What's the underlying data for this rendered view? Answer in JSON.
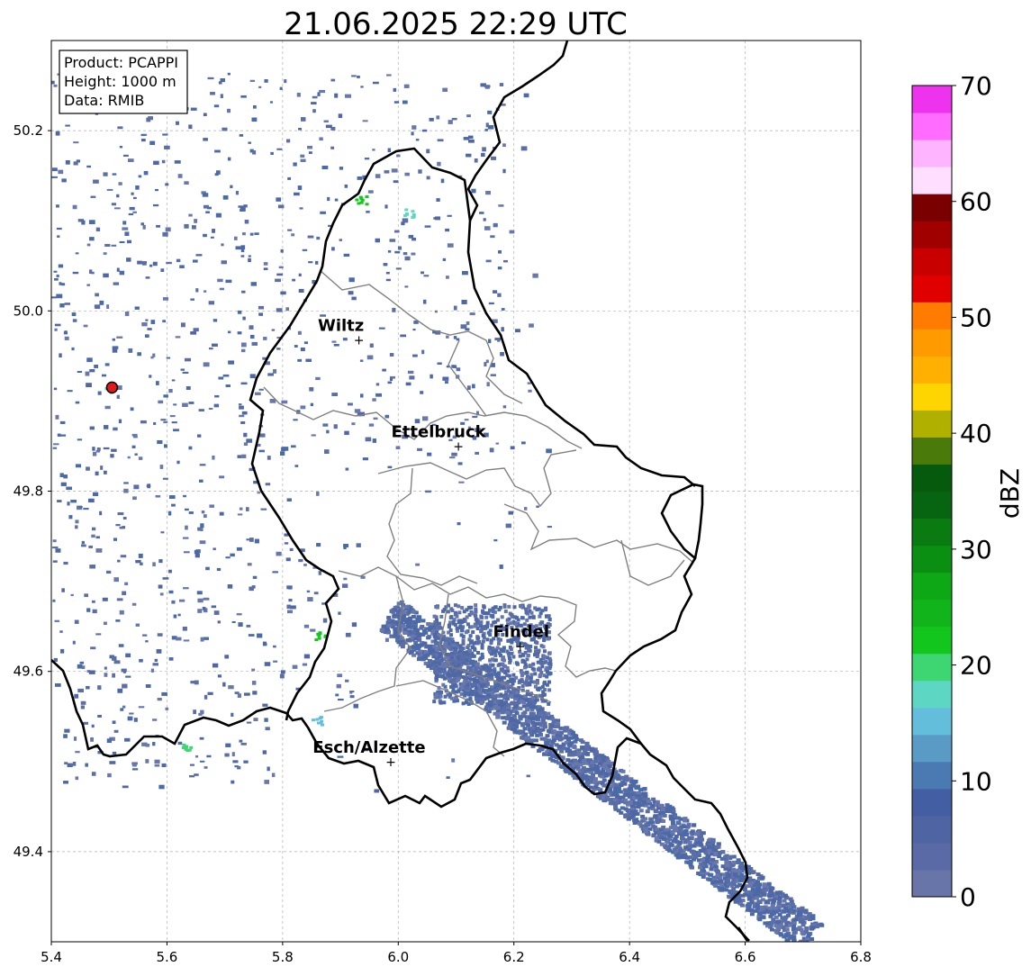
{
  "title": "21.06.2025 22:29 UTC",
  "info_box": {
    "product": "Product: PCAPPI",
    "height": "Height: 1000 m",
    "data": "Data: RMIB"
  },
  "map": {
    "lon_range": [
      5.4,
      6.8
    ],
    "lat_range": [
      49.3,
      50.3
    ],
    "x_ticks": [
      "5.4",
      "5.6",
      "5.8",
      "6.0",
      "6.2",
      "6.4",
      "6.6",
      "6.8"
    ],
    "y_ticks": [
      "49.4",
      "49.6",
      "49.8",
      "50.0",
      "50.2"
    ],
    "grid": true,
    "radar_site": {
      "lon": 5.505,
      "lat": 49.915
    },
    "cities": [
      {
        "name": "Wiltz",
        "lon": 5.932,
        "lat": 49.968
      },
      {
        "name": "Ettelbruck",
        "lon": 6.104,
        "lat": 49.85
      },
      {
        "name": "Findel",
        "lon": 6.211,
        "lat": 49.628
      },
      {
        "name": "Esch/Alzette",
        "lon": 5.987,
        "lat": 49.5
      }
    ]
  },
  "colorbar": {
    "label": "dBZ",
    "ticks": [
      "0",
      "10",
      "20",
      "30",
      "40",
      "50",
      "60",
      "70"
    ],
    "range": [
      0,
      70
    ],
    "colors": [
      "#6775a8",
      "#5a6aa6",
      "#4f64a3",
      "#435ea2",
      "#4b79b1",
      "#5a9bc6",
      "#63bedc",
      "#5dd7c4",
      "#3dd672",
      "#12c61d",
      "#11b41a",
      "#0ea816",
      "#0b8f13",
      "#097b10",
      "#076410",
      "#065a0d",
      "#497a0a",
      "#b0b000",
      "#ffd500",
      "#ffb000",
      "#ff9a00",
      "#ff7c00",
      "#e00000",
      "#c80000",
      "#a00000",
      "#7a0000",
      "#ffdeff",
      "#ffb4ff",
      "#ff6cff",
      "#ee33ee"
    ]
  }
}
